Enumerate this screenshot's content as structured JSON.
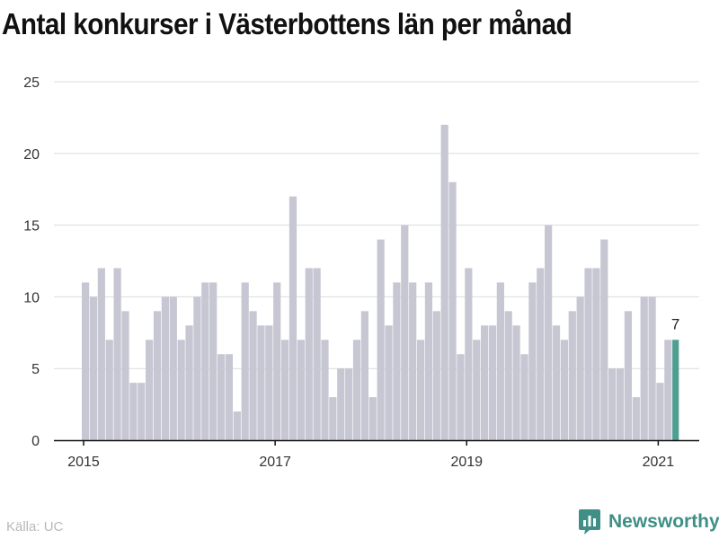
{
  "title": "Antal konkurser i Västerbottens län per månad",
  "source": "Källa: UC",
  "brand": {
    "name": "Newsworthy",
    "icon": "newsworthy-logo-icon"
  },
  "colors": {
    "bar": "#c7c6d3",
    "highlight": "#4e9e92",
    "grid": "#dcdcdc",
    "axis": "#111111",
    "text": "#333333",
    "brand": "#3f8f86"
  },
  "chart_data": {
    "type": "bar",
    "title": "Antal konkurser i Västerbottens län per månad",
    "xlabel": "",
    "ylabel": "",
    "ylim": [
      0,
      25
    ],
    "yticks": [
      0,
      5,
      10,
      15,
      20,
      25
    ],
    "xticks": [
      "2015",
      "2017",
      "2019",
      "2021"
    ],
    "grid": true,
    "start": "2015-01",
    "values": [
      11,
      10,
      12,
      7,
      12,
      9,
      4,
      4,
      7,
      9,
      10,
      10,
      7,
      8,
      10,
      11,
      11,
      6,
      6,
      2,
      11,
      9,
      8,
      8,
      11,
      7,
      17,
      7,
      12,
      12,
      7,
      3,
      5,
      5,
      7,
      9,
      3,
      14,
      8,
      11,
      15,
      11,
      7,
      11,
      9,
      22,
      18,
      6,
      12,
      7,
      8,
      8,
      11,
      9,
      8,
      6,
      11,
      12,
      15,
      8,
      7,
      9,
      10,
      12,
      12,
      14,
      5,
      5,
      9,
      3,
      10,
      10,
      4,
      7
    ],
    "highlight": {
      "month": "2021-02",
      "value": 7,
      "label": "7"
    }
  }
}
